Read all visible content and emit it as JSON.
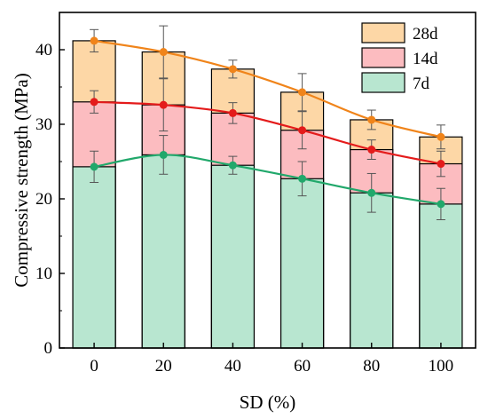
{
  "chart_data": {
    "type": "bar",
    "subtype": "overlapping-bars-with-trend-lines-and-error-bars",
    "categories": [
      "0",
      "20",
      "40",
      "60",
      "80",
      "100"
    ],
    "xlabel": "SD (%)",
    "ylabel": "Compressive strength (MPa)",
    "ylim": [
      0,
      45
    ],
    "yticks": [
      0,
      10,
      20,
      30,
      40
    ],
    "grid": false,
    "legend_position": "top-right",
    "series": [
      {
        "name": "28d",
        "values": [
          41.2,
          39.7,
          37.4,
          34.3,
          30.6,
          28.3
        ],
        "errors": [
          1.5,
          3.5,
          1.2,
          2.5,
          1.3,
          1.6
        ],
        "fill": "#fdd7a6",
        "line": "#f0841a"
      },
      {
        "name": "14d",
        "values": [
          33.0,
          32.6,
          31.5,
          29.2,
          26.6,
          24.7
        ],
        "errors": [
          1.5,
          3.5,
          1.4,
          2.5,
          1.3,
          1.7
        ],
        "fill": "#fcbcc0",
        "line": "#e41b1b"
      },
      {
        "name": "7d",
        "values": [
          24.3,
          25.9,
          24.5,
          22.7,
          20.8,
          19.3
        ],
        "errors": [
          2.1,
          2.6,
          1.2,
          2.3,
          2.6,
          2.1
        ],
        "fill": "#b8e6d0",
        "line": "#21a86b"
      }
    ]
  }
}
